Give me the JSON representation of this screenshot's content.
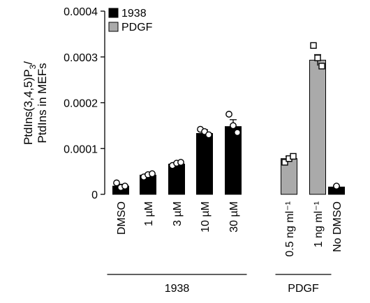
{
  "chart_data": {
    "type": "bar",
    "ylabel_line1": "PtdIns(3,4,5)P",
    "ylabel_sub": "3",
    "ylabel_slash": "/",
    "ylabel_line2": "PtdIns in MEFs",
    "ylim": [
      0,
      0.0004
    ],
    "yticks": [
      "0",
      "0.0001",
      "0.0002",
      "0.0003",
      "0.0004"
    ],
    "ytick_values": [
      0,
      0.0001,
      0.0002,
      0.0003,
      0.0004
    ],
    "grid": false,
    "legend_position": "top-left",
    "legend": [
      {
        "label": "1938",
        "color": "#000000"
      },
      {
        "label": "PDGF",
        "color": "#aaaaaa"
      }
    ],
    "categories": [
      "DMSO",
      "1 µM",
      "3 µM",
      "10 µM",
      "30 µM",
      "0.5 ng ml⁻¹",
      "1 ng ml⁻¹",
      "No DMSO"
    ],
    "values": [
      1.8e-05,
      4.2e-05,
      6.6e-05,
      0.000133,
      0.000148,
      7.8e-05,
      0.000293,
      1.6e-05
    ],
    "errors": [
      4e-06,
      3e-06,
      3e-06,
      8e-06,
      1.5e-05,
      5e-06,
      1.2e-05,
      2e-06
    ],
    "colors": [
      "#000000",
      "#000000",
      "#000000",
      "#000000",
      "#000000",
      "#aaaaaa",
      "#aaaaaa",
      "#000000"
    ],
    "points": [
      {
        "shape": "circle",
        "values": [
          2.5e-05,
          1.5e-05,
          1.8e-05
        ]
      },
      {
        "shape": "circle",
        "values": [
          3.8e-05,
          4.3e-05,
          4.5e-05
        ]
      },
      {
        "shape": "circle",
        "values": [
          6.3e-05,
          6.8e-05,
          7e-05
        ]
      },
      {
        "shape": "circle",
        "values": [
          0.000142,
          0.000137,
          0.00013
        ]
      },
      {
        "shape": "circle",
        "values": [
          0.000175,
          0.00015,
          0.000135
        ]
      },
      {
        "shape": "square",
        "values": [
          7e-05,
          7.8e-05,
          8.3e-05
        ]
      },
      {
        "shape": "square",
        "values": [
          0.000325,
          0.000298,
          0.00028
        ]
      },
      {
        "shape": "circle",
        "values": [
          1.8e-05
        ]
      }
    ],
    "groups": [
      {
        "label": "1938",
        "from": 0,
        "to": 4
      },
      {
        "label": "PDGF",
        "from": 5,
        "to": 6
      }
    ]
  }
}
